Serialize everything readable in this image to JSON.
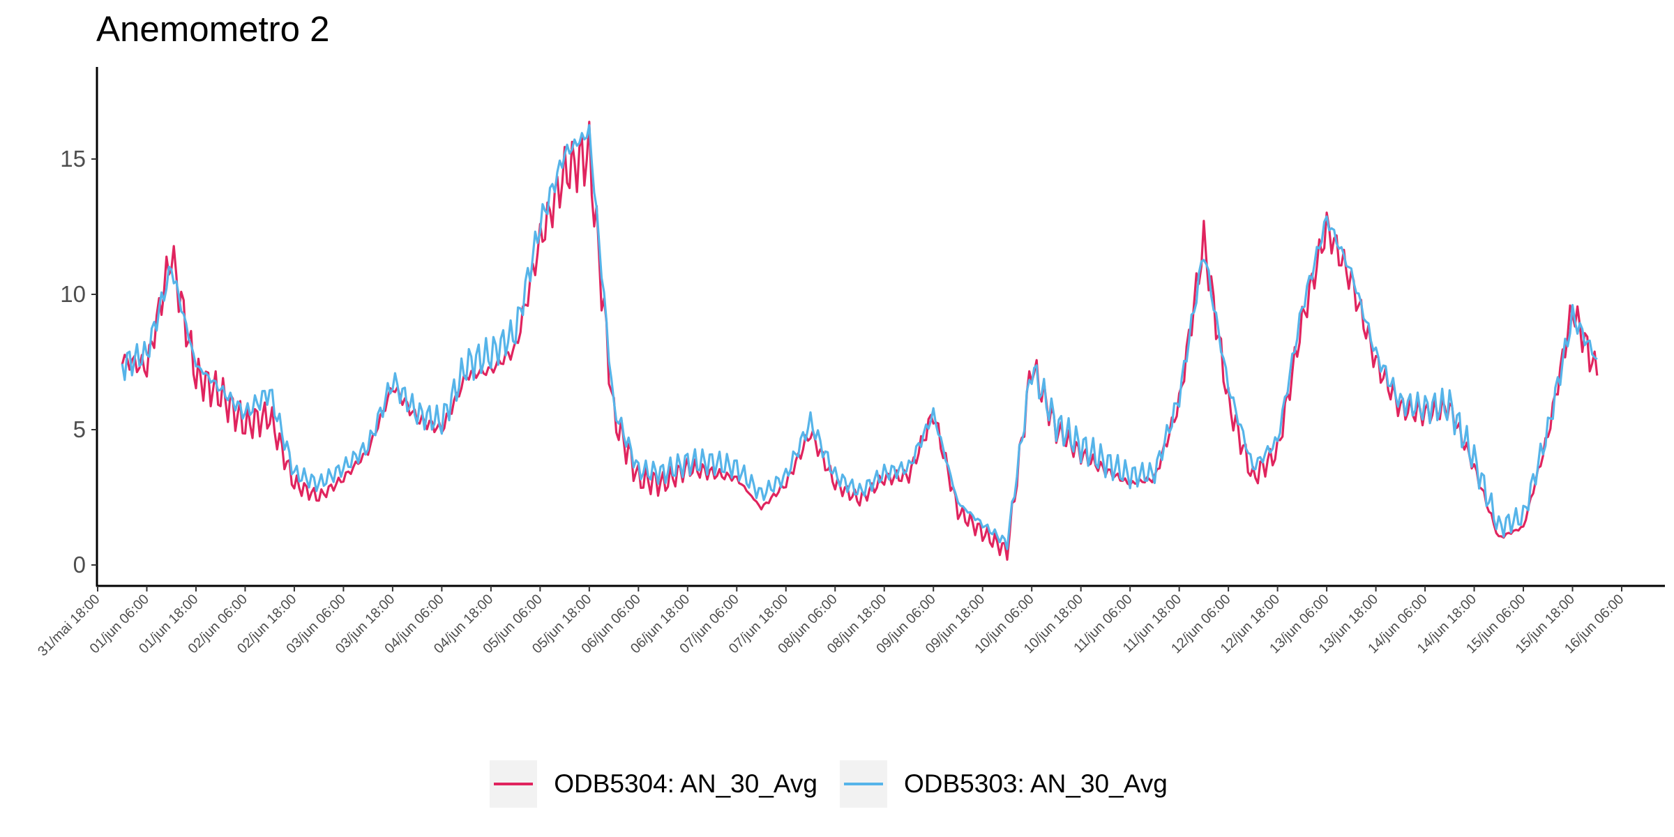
{
  "chart_data": {
    "type": "line",
    "title": "Anemometro 2",
    "xlabel": "",
    "ylabel": "",
    "ylim": [
      -0.8,
      18.6
    ],
    "yticks": [
      0,
      5,
      10,
      15
    ],
    "ytick_labels": [
      "0",
      "5",
      "10",
      "15"
    ],
    "xticks": [
      "31/mai 18:00",
      "01/jun 06:00",
      "01/jun 18:00",
      "02/jun 06:00",
      "02/jun 18:00",
      "03/jun 06:00",
      "03/jun 18:00",
      "04/jun 06:00",
      "04/jun 18:00",
      "05/jun 06:00",
      "05/jun 18:00",
      "06/jun 06:00",
      "06/jun 18:00",
      "07/jun 06:00",
      "07/jun 18:00",
      "08/jun 06:00",
      "08/jun 18:00",
      "09/jun 06:00",
      "09/jun 18:00",
      "10/jun 06:00",
      "10/jun 18:00",
      "11/jun 06:00",
      "11/jun 18:00",
      "12/jun 06:00",
      "12/jun 18:00",
      "13/jun 06:00",
      "13/jun 18:00",
      "14/jun 06:00",
      "14/jun 18:00",
      "15/jun 06:00",
      "15/jun 18:00",
      "16/jun 06:00"
    ],
    "xlim": [
      "31/mai 18:00",
      "16/jun 06:00"
    ],
    "grid": false,
    "legend_position": "bottom",
    "series": [
      {
        "name": "ODB5304: AN_30_Avg",
        "color": "#e0245e",
        "x": [
          "01/jun 00:00",
          "01/jun 06:00",
          "01/jun 12:00",
          "01/jun 18:00",
          "02/jun 00:00",
          "02/jun 06:00",
          "02/jun 12:00",
          "02/jun 18:00",
          "03/jun 00:00",
          "03/jun 06:00",
          "03/jun 12:00",
          "03/jun 18:00",
          "04/jun 00:00",
          "04/jun 06:00",
          "04/jun 12:00",
          "04/jun 18:00",
          "05/jun 00:00",
          "05/jun 06:00",
          "05/jun 12:00",
          "05/jun 18:00",
          "06/jun 00:00",
          "06/jun 06:00",
          "06/jun 12:00",
          "06/jun 18:00",
          "07/jun 00:00",
          "07/jun 06:00",
          "07/jun 12:00",
          "07/jun 18:00",
          "08/jun 00:00",
          "08/jun 06:00",
          "08/jun 12:00",
          "08/jun 18:00",
          "09/jun 00:00",
          "09/jun 06:00",
          "09/jun 12:00",
          "09/jun 18:00",
          "10/jun 00:00",
          "10/jun 06:00",
          "10/jun 12:00",
          "10/jun 18:00",
          "11/jun 00:00",
          "11/jun 06:00",
          "11/jun 12:00",
          "11/jun 18:00",
          "12/jun 00:00",
          "12/jun 06:00",
          "12/jun 12:00",
          "12/jun 18:00",
          "13/jun 00:00",
          "13/jun 06:00",
          "13/jun 12:00",
          "13/jun 18:00",
          "14/jun 00:00",
          "14/jun 06:00",
          "14/jun 12:00",
          "14/jun 18:00",
          "15/jun 00:00",
          "15/jun 06:00",
          "15/jun 12:00",
          "15/jun 18:00",
          "16/jun 00:00"
        ],
        "y": [
          7.6,
          7.3,
          11.5,
          7.0,
          6.3,
          5.2,
          5.5,
          3.0,
          2.5,
          3.2,
          4.2,
          6.6,
          5.4,
          5.0,
          7.0,
          7.2,
          8.0,
          12.0,
          14.5,
          15.2,
          5.5,
          3.2,
          3.0,
          3.6,
          3.4,
          3.2,
          2.1,
          3.0,
          4.9,
          3.0,
          2.4,
          3.2,
          3.3,
          5.6,
          2.0,
          1.2,
          0.5,
          7.4,
          5.0,
          4.1,
          3.5,
          3.0,
          3.2,
          6.0,
          12.0,
          6.0,
          3.2,
          4.2,
          9.0,
          12.5,
          10.5,
          7.5,
          5.8,
          5.6,
          5.8,
          3.6,
          1.0,
          1.4,
          4.8,
          9.5,
          7.0
        ]
      },
      {
        "name": "ODB5303: AN_30_Avg",
        "color": "#56b4e9",
        "x": [
          "01/jun 00:00",
          "01/jun 06:00",
          "01/jun 12:00",
          "01/jun 18:00",
          "02/jun 00:00",
          "02/jun 06:00",
          "02/jun 12:00",
          "02/jun 18:00",
          "03/jun 00:00",
          "03/jun 06:00",
          "03/jun 12:00",
          "03/jun 18:00",
          "04/jun 00:00",
          "04/jun 06:00",
          "04/jun 12:00",
          "04/jun 18:00",
          "05/jun 00:00",
          "05/jun 06:00",
          "05/jun 12:00",
          "05/jun 18:00",
          "06/jun 00:00",
          "06/jun 06:00",
          "06/jun 12:00",
          "06/jun 18:00",
          "07/jun 00:00",
          "07/jun 06:00",
          "07/jun 12:00",
          "07/jun 18:00",
          "08/jun 00:00",
          "08/jun 06:00",
          "08/jun 12:00",
          "08/jun 18:00",
          "09/jun 00:00",
          "09/jun 06:00",
          "09/jun 12:00",
          "09/jun 18:00",
          "10/jun 00:00",
          "10/jun 06:00",
          "10/jun 12:00",
          "10/jun 18:00",
          "11/jun 00:00",
          "11/jun 06:00",
          "11/jun 12:00",
          "11/jun 18:00",
          "12/jun 00:00",
          "12/jun 06:00",
          "12/jun 12:00",
          "12/jun 18:00",
          "13/jun 00:00",
          "13/jun 06:00",
          "13/jun 12:00",
          "13/jun 18:00",
          "14/jun 00:00",
          "14/jun 06:00",
          "14/jun 12:00",
          "14/jun 18:00",
          "15/jun 00:00",
          "15/jun 06:00",
          "15/jun 12:00",
          "15/jun 18:00",
          "16/jun 00:00"
        ],
        "y": [
          7.4,
          7.8,
          11.0,
          7.4,
          6.5,
          5.6,
          6.4,
          3.4,
          3.0,
          3.6,
          4.4,
          6.8,
          5.6,
          5.3,
          7.4,
          7.8,
          8.6,
          12.6,
          15.2,
          16.0,
          5.8,
          3.5,
          3.4,
          3.8,
          3.8,
          3.6,
          2.6,
          3.3,
          5.3,
          3.3,
          2.7,
          3.4,
          3.6,
          5.6,
          2.3,
          1.5,
          0.8,
          7.3,
          5.2,
          4.4,
          3.8,
          3.3,
          3.4,
          6.2,
          11.6,
          6.6,
          3.6,
          4.6,
          9.5,
          12.8,
          10.8,
          7.8,
          6.0,
          5.8,
          5.9,
          3.9,
          1.4,
          1.8,
          5.0,
          9.2,
          7.6
        ]
      }
    ]
  }
}
